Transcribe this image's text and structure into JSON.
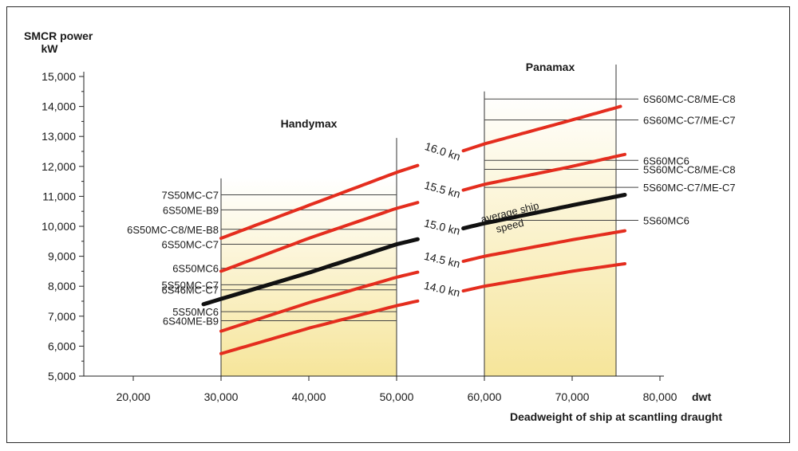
{
  "chart_data": {
    "type": "line",
    "title": "",
    "ylabel_line1": "SMCR power",
    "ylabel_line2": "kW",
    "xlabel": "Deadweight of ship at scantling draught",
    "x_unit": "dwt",
    "xlim": [
      10000,
      85000
    ],
    "ylim": [
      5000,
      15000
    ],
    "x_ticks": [
      20000,
      30000,
      40000,
      50000,
      60000,
      70000,
      80000
    ],
    "x_tick_labels": [
      "20,000",
      "30,000",
      "40,000",
      "50,000",
      "60,000",
      "70,000",
      "80,000"
    ],
    "y_ticks": [
      5000,
      6000,
      7000,
      8000,
      9000,
      10000,
      11000,
      12000,
      13000,
      14000,
      15000
    ],
    "y_tick_labels": [
      "5,000",
      "6,000",
      "7,000",
      "8,000",
      "9,000",
      "10,000",
      "11,000",
      "12,000",
      "13,000",
      "14,000",
      "15,000"
    ],
    "grid": false,
    "regions": [
      {
        "name": "Handymax",
        "x_range": [
          30000,
          50000
        ],
        "y_top": 11600
      },
      {
        "name": "Panamax",
        "x_range": [
          60000,
          75000
        ],
        "y_top": 14500
      }
    ],
    "series": [
      {
        "name": "16.0 kn",
        "color": "#e42d1e",
        "label_x": 55000,
        "x": [
          30000,
          40000,
          50000,
          60000,
          70000,
          75500
        ],
        "y": [
          9600,
          10700,
          11800,
          12750,
          13550,
          14000
        ]
      },
      {
        "name": "15.5 kn",
        "color": "#e42d1e",
        "label_x": 55000,
        "x": [
          30000,
          40000,
          50000,
          60000,
          70000,
          76000
        ],
        "y": [
          8500,
          9600,
          10600,
          11400,
          12000,
          12400
        ]
      },
      {
        "name": "15.0 kn",
        "color": "#111111",
        "label_x": 55000,
        "x": [
          28000,
          40000,
          50000,
          60000,
          70000,
          76000
        ],
        "y": [
          7400,
          8450,
          9400,
          10100,
          10700,
          11050
        ]
      },
      {
        "name": "14.5 kn",
        "color": "#e42d1e",
        "label_x": 55000,
        "x": [
          30000,
          40000,
          50000,
          60000,
          70000,
          76000
        ],
        "y": [
          6500,
          7450,
          8300,
          9000,
          9550,
          9850
        ]
      },
      {
        "name": "14.0 kn",
        "color": "#e42d1e",
        "label_x": 55000,
        "x": [
          30000,
          40000,
          50000,
          60000,
          70000,
          76000
        ],
        "y": [
          5750,
          6600,
          7350,
          8000,
          8500,
          8750
        ]
      }
    ],
    "annotations": [
      {
        "text": "average ship",
        "x": 63000,
        "y": 10350
      },
      {
        "text": "speed",
        "x": 63000,
        "y": 9900
      }
    ],
    "engine_lines_left": [
      {
        "text": "7S50MC-C7",
        "y": 11050
      },
      {
        "text": "6S50ME-B9",
        "y": 10550
      },
      {
        "text": "6S50MC-C8/ME-B8",
        "y": 9900
      },
      {
        "text": "6S50MC-C7",
        "y": 9400
      },
      {
        "text": "6S50MC6",
        "y": 8600
      },
      {
        "text": "5S50MC-C7",
        "y": 8050
      },
      {
        "text": "6S46MC-C7",
        "y": 7880
      },
      {
        "text": "5S50MC6",
        "y": 7150
      },
      {
        "text": "6S40ME-B9",
        "y": 6850
      }
    ],
    "engine_lines_right": [
      {
        "text": "6S60MC-C8/ME-C8",
        "y": 14250
      },
      {
        "text": "6S60MC-C7/ME-C7",
        "y": 13550
      },
      {
        "text": "6S60MC6",
        "y": 12200
      },
      {
        "text": "5S60MC-C8/ME-C8",
        "y": 11900
      },
      {
        "text": "5S60MC-C7/ME-C7",
        "y": 11300
      },
      {
        "text": "5S60MC6",
        "y": 10200
      }
    ]
  }
}
